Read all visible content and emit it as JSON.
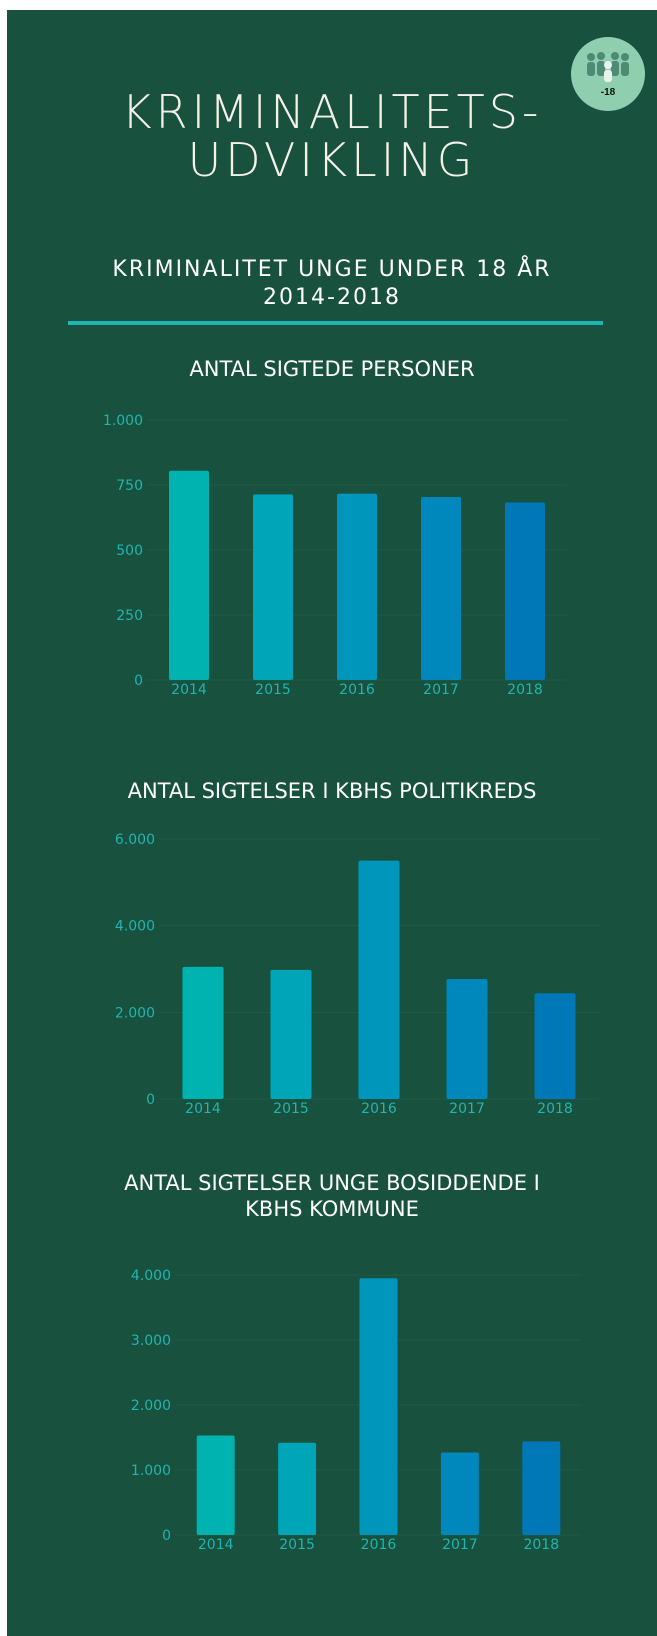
{
  "header": {
    "title_line1": "KRIMINALITETS-",
    "title_line2": "UDVIKLING",
    "subtitle_line1": "KRIMINALITET UNGE UNDER 18 ÅR",
    "subtitle_line2": "2014-2018",
    "badge_label": "-18",
    "badge_icon": "people-group-icon"
  },
  "colors": {
    "background": "#18513e",
    "accent": "#1fb5b0",
    "bars": [
      "#00b2b0",
      "#00a5b8",
      "#0096bb",
      "#0087bb",
      "#0077b6"
    ]
  },
  "chart_data": [
    {
      "type": "bar",
      "title": "ANTAL SIGTEDE PERSONER",
      "categories": [
        "2014",
        "2015",
        "2016",
        "2017",
        "2018"
      ],
      "values": [
        805,
        714,
        717,
        704,
        683
      ],
      "ylim": [
        0,
        1000
      ],
      "yticks": [
        0,
        250,
        500,
        750,
        1000
      ],
      "ytick_labels": [
        "0",
        "250",
        "500",
        "750",
        "1.000"
      ],
      "grid": true
    },
    {
      "type": "bar",
      "title": "ANTAL SIGTELSER I KBHS POLITIKREDS",
      "categories": [
        "2014",
        "2015",
        "2016",
        "2017",
        "2018"
      ],
      "values": [
        3050,
        2980,
        5500,
        2770,
        2440
      ],
      "ylim": [
        0,
        6000
      ],
      "yticks": [
        0,
        2000,
        4000,
        6000
      ],
      "ytick_labels": [
        "0",
        "2.000",
        "4.000",
        "6.000"
      ],
      "grid": true
    },
    {
      "type": "bar",
      "title_line1": "ANTAL SIGTELSER UNGE BOSIDDENDE I",
      "title_line2": "KBHS KOMMUNE",
      "categories": [
        "2014",
        "2015",
        "2016",
        "2017",
        "2018"
      ],
      "values": [
        1530,
        1420,
        3950,
        1270,
        1440
      ],
      "ylim": [
        0,
        4000
      ],
      "yticks": [
        0,
        1000,
        2000,
        3000,
        4000
      ],
      "ytick_labels": [
        "0",
        "1.000",
        "2.000",
        "3.000",
        "4.000"
      ],
      "grid": true
    }
  ]
}
